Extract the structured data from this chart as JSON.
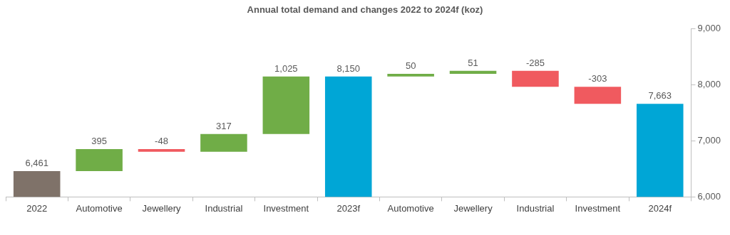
{
  "chart_data": {
    "type": "bar",
    "title": "Annual total demand and changes 2022 to 2024f (koz)",
    "categories": [
      "2022",
      "Automotive",
      "Jewellery",
      "Industrial",
      "Investment",
      "2023f",
      "Automotive",
      "Jewellery",
      "Industrial",
      "Investment",
      "2024f"
    ],
    "values": [
      6461,
      395,
      -48,
      317,
      1025,
      8150,
      50,
      51,
      -285,
      -303,
      7663
    ],
    "base": [
      null,
      6461,
      6856,
      6808,
      7125,
      null,
      8150,
      8200,
      8251,
      7966,
      null
    ],
    "colors": [
      "#7f7269",
      "#70ad47",
      "#f05a5f",
      "#70ad47",
      "#70ad47",
      "#00a6d6",
      "#70ad47",
      "#70ad47",
      "#f05a5f",
      "#f05a5f",
      "#00a6d6"
    ],
    "ylim": [
      6000,
      9000
    ],
    "yticks": [
      {
        "value": 6000,
        "label": "6,000"
      },
      {
        "value": 7000,
        "label": "7,000"
      },
      {
        "value": 8000,
        "label": "8,000"
      },
      {
        "value": 9000,
        "label": "9,000"
      }
    ],
    "value_labels": [
      "6,461",
      "395",
      "-48",
      "317",
      "1,025",
      "8,150",
      "50",
      "51",
      "-285",
      "-303",
      "7,663"
    ],
    "grid": false,
    "legend": false
  }
}
